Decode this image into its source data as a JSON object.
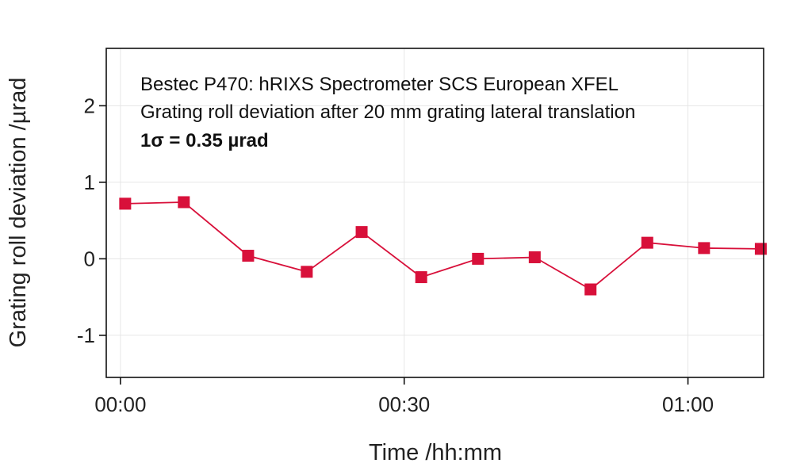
{
  "chart_data": {
    "type": "line",
    "title": "",
    "xlabel": "Time /hh:mm",
    "ylabel": "Grating roll deviation /µrad",
    "annotations": [
      "Bestec P470: hRIXS Spectrometer SCS European XFEL",
      "Grating roll deviation after 20 mm grating lateral translation",
      "1σ = 0.35 µrad"
    ],
    "x_unit": "minutes",
    "x_ticks": [
      {
        "value": 0,
        "label": "00:00"
      },
      {
        "value": 30,
        "label": "00:30"
      },
      {
        "value": 60,
        "label": "01:00"
      }
    ],
    "y_ticks": [
      {
        "value": -1,
        "label": "-1"
      },
      {
        "value": 0,
        "label": "0"
      },
      {
        "value": 1,
        "label": "1"
      },
      {
        "value": 2,
        "label": "2"
      }
    ],
    "xlim": [
      -1.5,
      68
    ],
    "ylim": [
      -1.55,
      2.75
    ],
    "grid": true,
    "color": "#d8103a",
    "series": [
      {
        "x": [
          0.5,
          6.7,
          13.5,
          19.7,
          25.5,
          31.8,
          37.8,
          43.8,
          49.7,
          55.7,
          61.7,
          67.7
        ],
        "y": [
          0.72,
          0.74,
          0.04,
          -0.17,
          0.35,
          -0.24,
          0.0,
          0.02,
          -0.4,
          0.21,
          0.14,
          0.13
        ]
      }
    ]
  }
}
